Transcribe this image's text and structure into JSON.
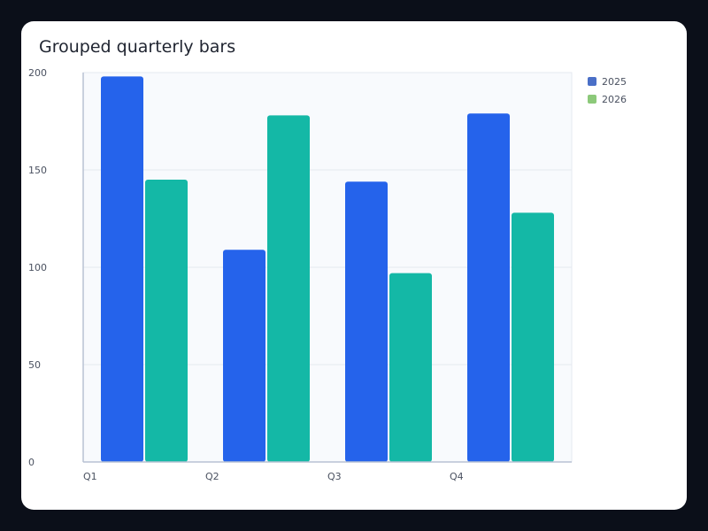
{
  "chart_data": {
    "type": "bar",
    "title": "Grouped quarterly bars",
    "xlabel": "",
    "ylabel": "",
    "categories": [
      "Q1",
      "Q2",
      "Q3",
      "Q4"
    ],
    "series": [
      {
        "name": "2025",
        "values": [
          198,
          109,
          144,
          179
        ]
      },
      {
        "name": "2026",
        "values": [
          145,
          178,
          97,
          128
        ]
      }
    ],
    "ylim": [
      0,
      200
    ],
    "yticks": [
      0,
      50,
      100,
      150,
      200
    ],
    "grid": true,
    "legend": "top-right"
  },
  "colors": {
    "bar_2025": "#2563eb",
    "bar_2026": "#14b8a6",
    "legend_2025": "#4a6fc7",
    "legend_2026": "#8cc97a",
    "plot_bg": "#f8fafd",
    "grid": "#e5e9f0",
    "axis": "#b8c2d3"
  }
}
